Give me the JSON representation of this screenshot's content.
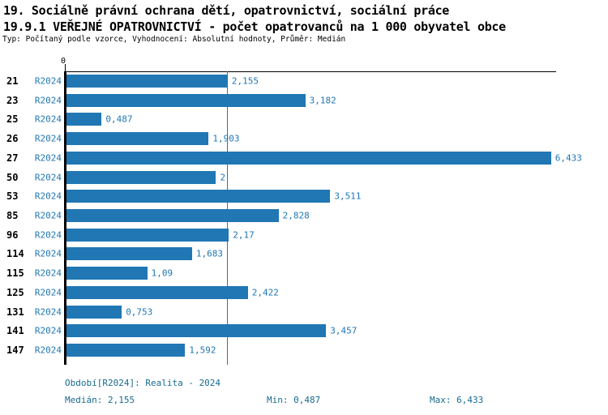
{
  "header": {
    "line1": "19. Sociálně právní ochrana dětí, opatrovnictví, sociální práce",
    "line2": "19.9.1 VEŘEJNÉ OPATROVNICTVÍ - počet opatrovanců na 1 000 obyvatel obce",
    "line3": "Typ: Počítaný podle vzorce, Vyhodnocení: Absolutní hodnoty, Průměr: Medián"
  },
  "axis": {
    "zero_label": "0"
  },
  "chart_data": {
    "type": "bar",
    "orientation": "horizontal",
    "title": "19.9.1 VEŘEJNÉ OPATROVNICTVÍ - počet opatrovanců na 1 000 obyvatel obce",
    "categories": [
      "21",
      "23",
      "25",
      "26",
      "27",
      "50",
      "53",
      "85",
      "96",
      "114",
      "115",
      "125",
      "131",
      "141",
      "147"
    ],
    "series": [
      {
        "name": "R2024",
        "values": [
          2.155,
          3.182,
          0.487,
          1.903,
          6.433,
          2,
          3.511,
          2.828,
          2.17,
          1.683,
          1.09,
          2.422,
          0.753,
          3.457,
          1.592
        ],
        "value_labels": [
          "2,155",
          "3,182",
          "0,487",
          "1,903",
          "6,433",
          "2",
          "3,511",
          "2,828",
          "2,17",
          "1,683",
          "1,09",
          "2,422",
          "0,753",
          "3,457",
          "1,592"
        ]
      }
    ],
    "xlabel": "",
    "ylabel": "",
    "xlim": [
      0,
      6.5
    ],
    "median": 2.155,
    "grid": false,
    "legend": false,
    "median_line": true
  },
  "footer": {
    "period": "Období[R2024]: Realita - 2024",
    "median": "Medián: 2,155",
    "min": "Min: 0,487",
    "max": "Max: 6,433"
  },
  "colors": {
    "bar": "#2077b4",
    "label_blue": "#2077b4",
    "footer_teal": "#176b8f",
    "axis_black": "#000000"
  }
}
